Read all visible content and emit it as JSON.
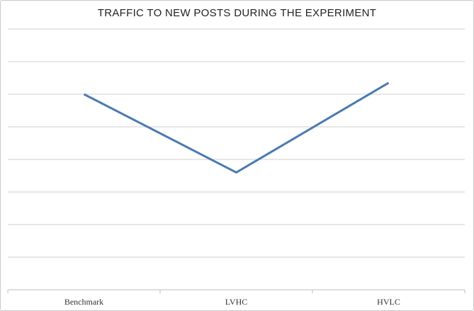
{
  "chart_data": {
    "type": "line",
    "title": "TRAFFIC TO NEW POSTS DURING THE EXPERIMENT",
    "xlabel": "",
    "ylabel": "",
    "categories": [
      "Benchmark",
      "LVHC",
      "HVLC"
    ],
    "series": [
      {
        "values": [
          6.0,
          3.6,
          6.35
        ],
        "color": "#4a7ab0"
      }
    ],
    "ylim": [
      0,
      8
    ],
    "grid": true,
    "y_tick_labels_shown": false,
    "legend": "none"
  }
}
